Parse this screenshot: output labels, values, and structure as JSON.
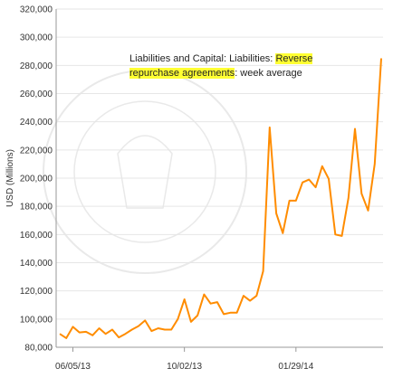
{
  "colors": {
    "line": "#ff8c00",
    "grid": "#e6e6e6",
    "axis": "#999999",
    "highlight": "#ffff33",
    "seal": "#e9e9e9"
  },
  "annotation": {
    "part1": "Liabilities and Capital: Liabilities: ",
    "highlight": "Reverse repurchase agreements",
    "part2": ": week average"
  },
  "chart_data": {
    "type": "line",
    "title": "",
    "xlabel": "",
    "ylabel": "USD (Millions)",
    "ylim": [
      80000,
      320000
    ],
    "ytick_step": 20000,
    "grid": "horizontal",
    "xtick_labels": [
      {
        "label": "06/05/13",
        "at": "2013-06-05"
      },
      {
        "label": "10/02/13",
        "at": "2013-10-02"
      },
      {
        "label": "01/29/14",
        "at": "2014-01-29"
      }
    ],
    "series": [
      {
        "x": [
          "2013-05-22",
          "2013-05-29",
          "2013-06-05",
          "2013-06-12",
          "2013-06-19",
          "2013-06-26",
          "2013-07-03",
          "2013-07-10",
          "2013-07-17",
          "2013-07-24",
          "2013-07-31",
          "2013-08-07",
          "2013-08-14",
          "2013-08-21",
          "2013-08-28",
          "2013-09-04",
          "2013-09-11",
          "2013-09-18",
          "2013-09-25",
          "2013-10-02",
          "2013-10-09",
          "2013-10-16",
          "2013-10-23",
          "2013-10-30",
          "2013-11-06",
          "2013-11-13",
          "2013-11-20",
          "2013-11-27",
          "2013-12-04",
          "2013-12-11",
          "2013-12-18",
          "2013-12-25",
          "2014-01-01",
          "2014-01-08",
          "2014-01-15",
          "2014-01-22",
          "2014-01-29",
          "2014-02-05",
          "2014-02-12",
          "2014-02-19",
          "2014-02-26",
          "2014-03-05",
          "2014-03-12",
          "2014-03-19",
          "2014-03-26",
          "2014-04-02",
          "2014-04-09",
          "2014-04-16",
          "2014-04-23",
          "2014-04-30"
        ],
        "values": [
          89500,
          86500,
          94500,
          90500,
          91000,
          88500,
          93500,
          89500,
          92500,
          87000,
          89500,
          92500,
          95000,
          99000,
          91500,
          93500,
          92500,
          92500,
          100000,
          114000,
          98000,
          102500,
          117500,
          111000,
          112000,
          103500,
          104500,
          104500,
          116500,
          113000,
          116500,
          134000,
          236000,
          175000,
          161000,
          184000,
          184000,
          197000,
          199000,
          193500,
          208500,
          199500,
          160000,
          159000,
          186000,
          235000,
          189000,
          177000,
          210000,
          285000
        ]
      }
    ]
  }
}
